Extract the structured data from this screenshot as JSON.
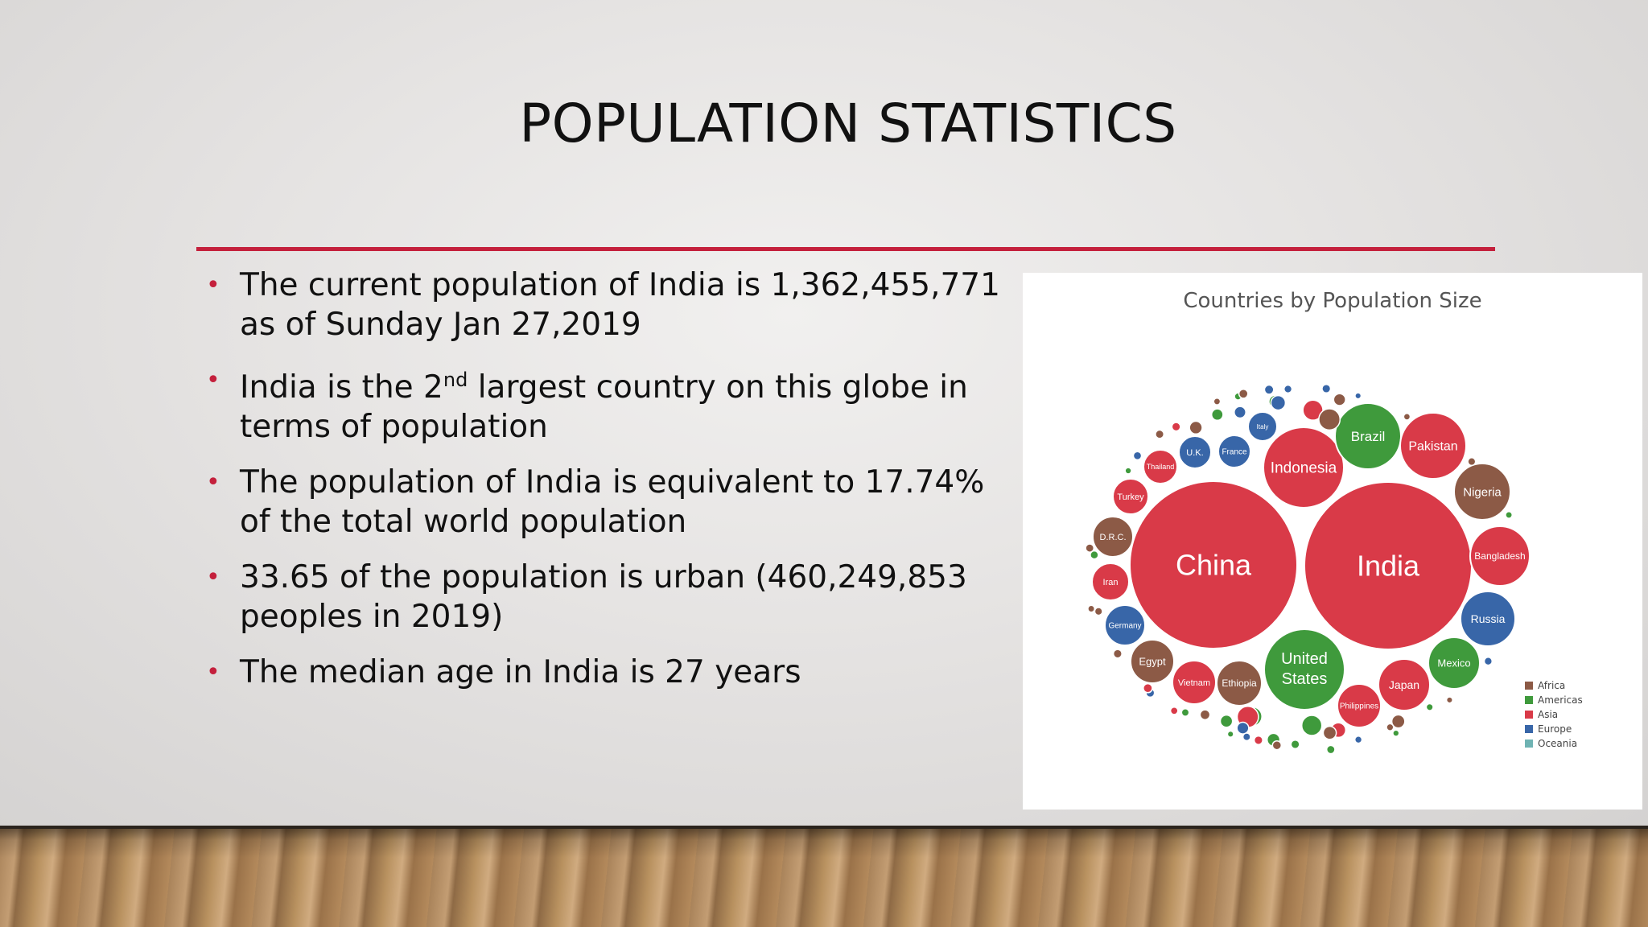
{
  "slide": {
    "title": "POPULATION STATISTICS",
    "bullets": [
      {
        "text": "The current population of India is 1,362,455,771 as of Sunday Jan 27,2019"
      },
      {
        "before": "India is the 2",
        "sup": "nd",
        "after": " largest country on this globe in terms of population"
      },
      {
        "text": "The population of India is equivalent to 17.74% of the total world population"
      },
      {
        "text": "33.65 of the population is urban (460,249,853 peoples in 2019)"
      },
      {
        "text": "The median age in India is 27 years"
      }
    ],
    "bullet_glyph": "•"
  },
  "colors": {
    "accent": "#c4203c",
    "Africa": "#8c5a46",
    "Americas": "#3f9a3c",
    "Asia": "#d93a48",
    "Europe": "#3866a8",
    "Oceania": "#6fb3b3"
  },
  "chart_data": {
    "type": "bubble",
    "title": "Countries by Population Size",
    "legend": [
      "Africa",
      "Americas",
      "Asia",
      "Europe",
      "Oceania"
    ],
    "labeled_countries": [
      {
        "name": "China",
        "region": "Asia"
      },
      {
        "name": "India",
        "region": "Asia"
      },
      {
        "name": "United States",
        "region": "Americas"
      },
      {
        "name": "Indonesia",
        "region": "Asia"
      },
      {
        "name": "Brazil",
        "region": "Americas"
      },
      {
        "name": "Pakistan",
        "region": "Asia"
      },
      {
        "name": "Nigeria",
        "region": "Africa"
      },
      {
        "name": "Bangladesh",
        "region": "Asia"
      },
      {
        "name": "Russia",
        "region": "Europe"
      },
      {
        "name": "Mexico",
        "region": "Americas"
      },
      {
        "name": "Japan",
        "region": "Asia"
      },
      {
        "name": "Ethiopia",
        "region": "Africa"
      },
      {
        "name": "Philippines",
        "region": "Asia"
      },
      {
        "name": "Egypt",
        "region": "Africa"
      },
      {
        "name": "Vietnam",
        "region": "Asia"
      },
      {
        "name": "D.R.C.",
        "region": "Africa"
      },
      {
        "name": "Germany",
        "region": "Europe"
      },
      {
        "name": "Iran",
        "region": "Asia"
      },
      {
        "name": "Turkey",
        "region": "Asia"
      },
      {
        "name": "Thailand",
        "region": "Asia"
      },
      {
        "name": "U.K.",
        "region": "Europe"
      },
      {
        "name": "France",
        "region": "Europe"
      },
      {
        "name": "Italy",
        "region": "Europe"
      }
    ]
  }
}
